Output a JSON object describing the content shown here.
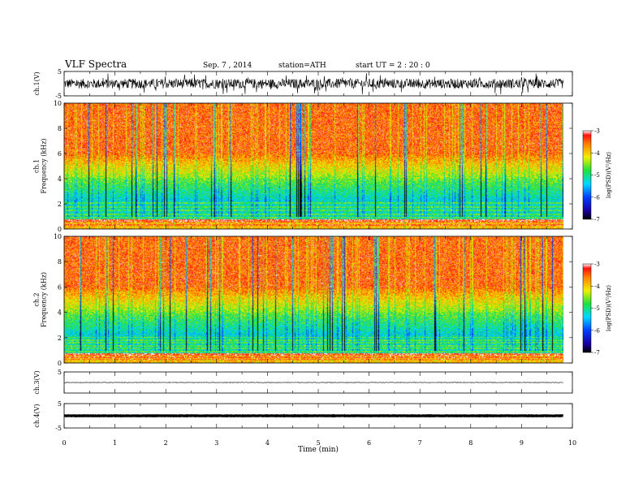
{
  "header": {
    "title": "VLF  Spectra",
    "date": "Sep. 7  , 2014",
    "station": "station=ATH",
    "start": "start  UT  =   2  : 20 : 0"
  },
  "chart_data": [
    {
      "type": "line",
      "id": "ch1-waveform",
      "ylabel": "ch.1(V)",
      "ylim": [
        -5,
        5
      ],
      "yticks": [
        "5",
        "-5"
      ],
      "xlim": [
        0,
        10
      ],
      "data_extent_min": [
        0,
        9.82
      ],
      "signal": "noisy waveform centred near 0 V with bursts up to about +/-4 V"
    },
    {
      "type": "heatmap",
      "id": "ch1-spectrogram",
      "ylabel": "ch.1\nFrequency  (kHz)",
      "ylim": [
        0,
        10
      ],
      "yticks": [
        "0",
        "2",
        "4",
        "6",
        "8",
        "10"
      ],
      "xlim": [
        0,
        10
      ],
      "data_extent_min": [
        0,
        9.82
      ],
      "colorbar": {
        "label": "log(PSD)(V²/Hz)",
        "range": [
          -7,
          -3
        ],
        "ticks": [
          "-3",
          "-4",
          "-5",
          "-6",
          "-7"
        ]
      }
    },
    {
      "type": "heatmap",
      "id": "ch2-spectrogram",
      "ylabel": "ch.2\nFrequency  (kHz)",
      "ylim": [
        0,
        10
      ],
      "yticks": [
        "0",
        "2",
        "4",
        "6",
        "8",
        "10"
      ],
      "xlim": [
        0,
        10
      ],
      "data_extent_min": [
        0,
        9.82
      ],
      "colorbar": {
        "label": "log(PSD)(V²/Hz)",
        "range": [
          -7,
          -3
        ],
        "ticks": [
          "-3",
          "-4",
          "-5",
          "-6",
          "-7"
        ]
      }
    },
    {
      "type": "line",
      "id": "ch3-waveform",
      "ylabel": "ch.3(V)",
      "ylim": [
        -5,
        5
      ],
      "yticks": [
        "5"
      ],
      "xlim": [
        0,
        10
      ],
      "data_extent_min": [
        0,
        9.82
      ],
      "signal": "nearly flat trace near 0 V"
    },
    {
      "type": "line",
      "id": "ch4-waveform",
      "ylabel": "ch.4(V)",
      "ylim": [
        -5,
        5
      ],
      "yticks": [
        "5",
        "-5"
      ],
      "xlim": [
        0,
        10
      ],
      "data_extent_min": [
        0,
        9.82
      ],
      "signal": "thick flat trace near 0 V"
    }
  ],
  "x_axis": {
    "label": "Time  (min)",
    "ticks": [
      "0",
      "1",
      "2",
      "3",
      "4",
      "5",
      "6",
      "7",
      "8",
      "9",
      "10"
    ]
  }
}
